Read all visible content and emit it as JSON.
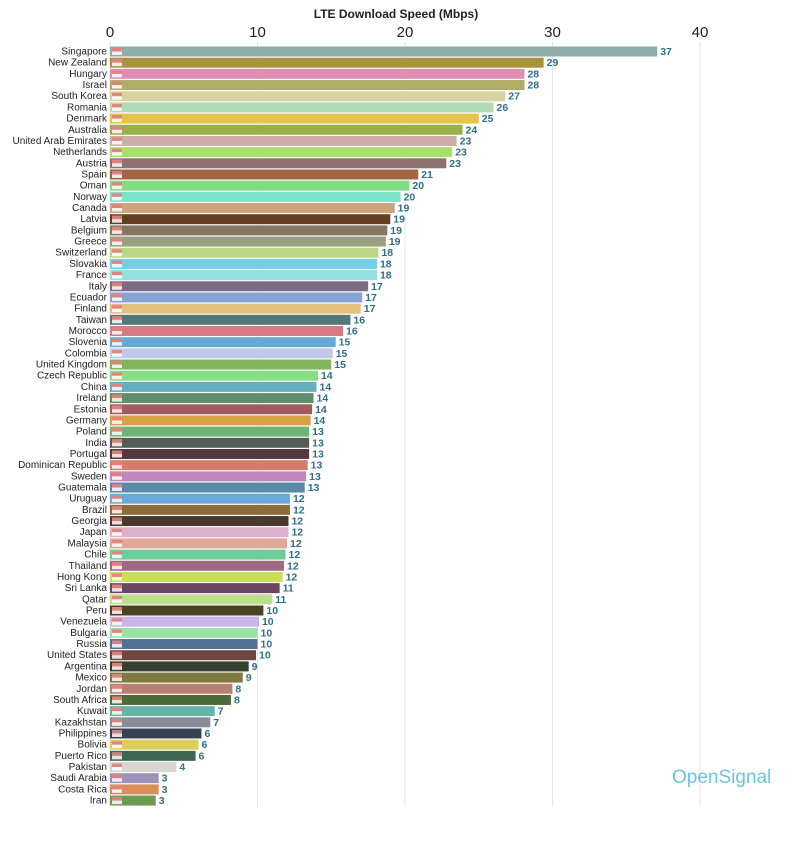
{
  "chart_data": {
    "type": "bar",
    "orientation": "horizontal",
    "title": "LTE Download Speed (Mbps)",
    "xlim": [
      0,
      40
    ],
    "x_ticks": [
      "0",
      "10",
      "20",
      "30",
      "40"
    ],
    "x_tick_values": [
      0,
      10,
      20,
      30,
      40
    ],
    "grid": true,
    "axis_position": "top",
    "categories": [
      "Singapore",
      "New Zealand",
      "Hungary",
      "Israel",
      "South Korea",
      "Romania",
      "Denmark",
      "Australia",
      "United Arab Emirates",
      "Netherlands",
      "Austria",
      "Spain",
      "Oman",
      "Norway",
      "Canada",
      "Latvia",
      "Belgium",
      "Greece",
      "Switzerland",
      "Slovakia",
      "France",
      "Italy",
      "Ecuador",
      "Finland",
      "Taiwan",
      "Morocco",
      "Slovenia",
      "Colombia",
      "United Kingdom",
      "Czech Republic",
      "China",
      "Ireland",
      "Estonia",
      "Germany",
      "Poland",
      "India",
      "Portugal",
      "Dominican Republic",
      "Sweden",
      "Guatemala",
      "Uruguay",
      "Brazil",
      "Georgia",
      "Japan",
      "Malaysia",
      "Chile",
      "Thailand",
      "Hong Kong",
      "Sri Lanka",
      "Qatar",
      "Peru",
      "Venezuela",
      "Bulgaria",
      "Russia",
      "United States",
      "Argentina",
      "Mexico",
      "Jordan",
      "South Africa",
      "Kuwait",
      "Kazakhstan",
      "Philippines",
      "Bolivia",
      "Puerto Rico",
      "Pakistan",
      "Saudi Arabia",
      "Costa Rica",
      "Iran"
    ],
    "values": [
      37.1,
      29.4,
      28.1,
      28.1,
      26.8,
      26.0,
      25.0,
      23.9,
      23.5,
      23.2,
      22.8,
      20.9,
      20.3,
      19.7,
      19.3,
      19.0,
      18.8,
      18.7,
      18.2,
      18.1,
      18.1,
      17.5,
      17.1,
      17.0,
      16.3,
      15.8,
      15.3,
      15.1,
      15.0,
      14.1,
      14.0,
      13.8,
      13.7,
      13.6,
      13.5,
      13.5,
      13.5,
      13.4,
      13.3,
      13.2,
      12.2,
      12.2,
      12.1,
      12.1,
      12.0,
      11.9,
      11.8,
      11.7,
      11.5,
      11.0,
      10.4,
      10.1,
      10.0,
      10.0,
      9.9,
      9.4,
      9.0,
      8.3,
      8.2,
      7.1,
      6.8,
      6.2,
      6.0,
      5.8,
      4.5,
      3.3,
      3.3,
      3.1
    ],
    "data_labels": [
      "37",
      "29",
      "28",
      "28",
      "27",
      "26",
      "25",
      "24",
      "23",
      "23",
      "23",
      "21",
      "20",
      "20",
      "19",
      "19",
      "19",
      "19",
      "18",
      "18",
      "18",
      "17",
      "17",
      "17",
      "16",
      "16",
      "15",
      "15",
      "15",
      "14",
      "14",
      "14",
      "14",
      "14",
      "13",
      "13",
      "13",
      "13",
      "13",
      "13",
      "12",
      "12",
      "12",
      "12",
      "12",
      "12",
      "12",
      "12",
      "11",
      "11",
      "10",
      "10",
      "10",
      "10",
      "10",
      "9",
      "9",
      "8",
      "8",
      "7",
      "7",
      "6",
      "6",
      "6",
      "4",
      "3",
      "3",
      "3"
    ],
    "colors": [
      "#8fada8",
      "#a8923c",
      "#e08fb3",
      "#b0ab66",
      "#d6d2a2",
      "#b0dbb5",
      "#e6c44a",
      "#9aae4c",
      "#cdaea8",
      "#a7e06a",
      "#8e7170",
      "#a26542",
      "#82dc84",
      "#7ee2c9",
      "#cea37c",
      "#633f22",
      "#857862",
      "#9a9f80",
      "#bad887",
      "#76cde8",
      "#93e0e0",
      "#7f6c82",
      "#86a3d8",
      "#e0c07c",
      "#537777",
      "#d87a83",
      "#66a8d6",
      "#c0c9e5",
      "#84b55c",
      "#86df84",
      "#66aec0",
      "#5f8e6c",
      "#a25c60",
      "#d6a146",
      "#6db474",
      "#545b54",
      "#533840",
      "#d67c6a",
      "#bd88bd",
      "#5a8ba6",
      "#68a9d8",
      "#8a6e3a",
      "#4a3a2e",
      "#dbb0c9",
      "#e0a79a",
      "#6dcc9a",
      "#a06a82",
      "#cbdc56",
      "#6a4660",
      "#bce08a",
      "#4a4222",
      "#ccb3e8",
      "#98e3a3",
      "#557092",
      "#704540",
      "#36402e",
      "#7e7a42",
      "#b87f73",
      "#4d6a3a",
      "#66b3a8",
      "#8a8c98",
      "#3a4054",
      "#dacf5a",
      "#3d6650",
      "#d8d6d0",
      "#9d90bb",
      "#d98f5a",
      "#6e9a50"
    ],
    "label_color": "#2f6f86"
  },
  "logo": "OpenSignal"
}
